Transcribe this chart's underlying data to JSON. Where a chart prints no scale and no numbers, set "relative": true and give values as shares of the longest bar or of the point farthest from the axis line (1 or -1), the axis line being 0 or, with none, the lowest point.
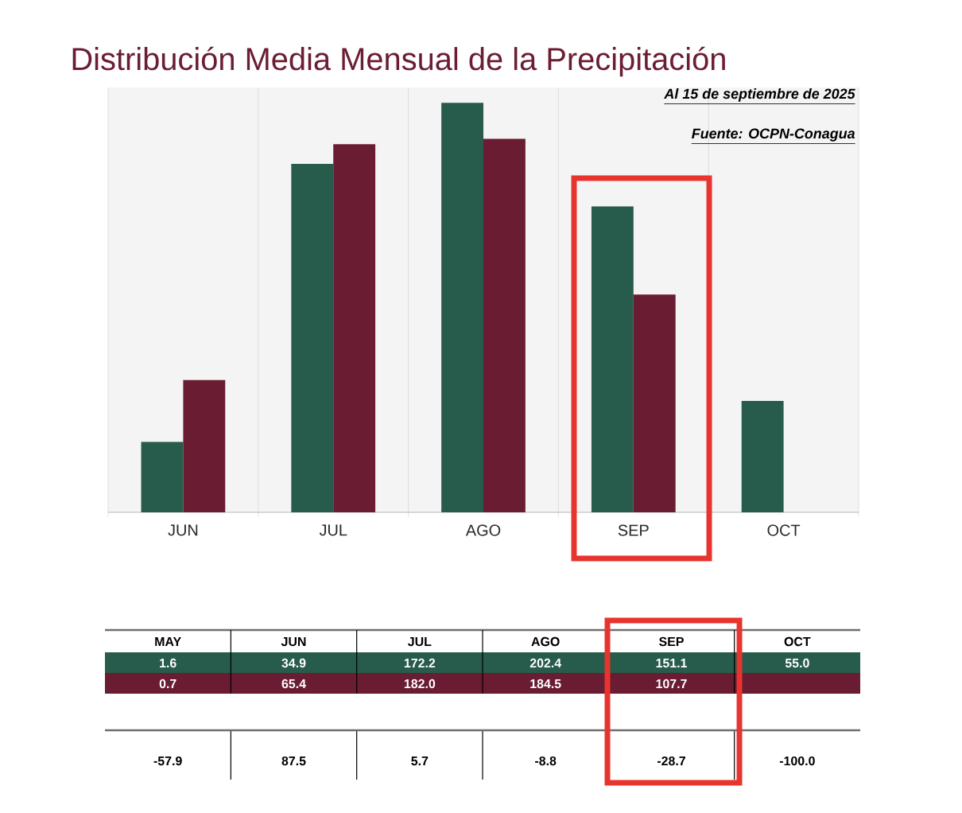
{
  "chart_data": [
    {
      "type": "bar",
      "title": "Distribución Media Mensual de la Precipitación",
      "relative": true,
      "categories": [
        "JUN",
        "JUL",
        "AGO",
        "SEP",
        "OCT"
      ],
      "series": [
        {
          "color": "#275b4c",
          "values": [
            0.172,
            0.851,
            1,
            0.747,
            0.272
          ]
        },
        {
          "color": "#6a1c32",
          "values": [
            0.323,
            0.899,
            0.912,
            0.532,
            null
          ]
        }
      ],
      "grid": true,
      "annotations": [
        "Al 15 de septiembre de 2025",
        "Fuente: OCPN-Conagua"
      ]
    },
    {
      "type": "other",
      "categories": [
        "MAY",
        "JUN",
        "JUL",
        "AGO",
        "SEP",
        "OCT"
      ],
      "series": [
        {
          "color": "#275b4c",
          "values": [
            1.6,
            34.9,
            172.2,
            202.4,
            151.1,
            55.0
          ],
          "value_labels": [
            "1.6",
            "34.9",
            "172.2",
            "202.4",
            "151.1",
            "55.0"
          ]
        },
        {
          "color": "#6a1c32",
          "values": [
            0.7,
            65.4,
            182.0,
            184.5,
            107.7,
            null
          ],
          "value_labels": [
            "0.7",
            "65.4",
            "182.0",
            "184.5",
            "107.7",
            null
          ]
        },
        {
          "values": [
            -57.9,
            87.5,
            5.7,
            -8.8,
            -28.7,
            -100.0
          ],
          "value_labels": [
            "-57.9",
            "87.5",
            "5.7",
            "-8.8",
            "-28.7",
            "-100.0"
          ]
        }
      ]
    }
  ]
}
